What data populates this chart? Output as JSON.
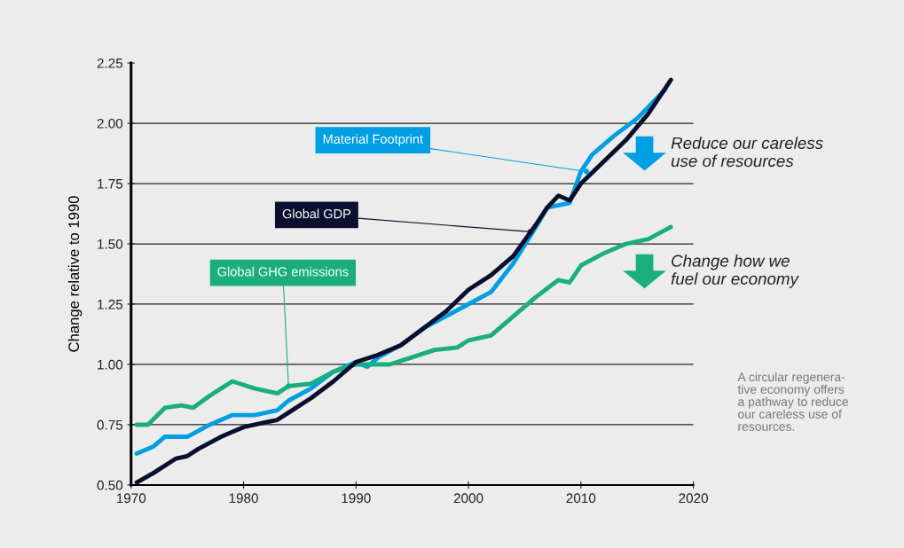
{
  "chart_data": {
    "type": "line",
    "ylabel": "Change relative to 1990",
    "xlim": [
      1970,
      2020
    ],
    "xticks": [
      1970,
      1980,
      1990,
      2000,
      2010,
      2020
    ],
    "ylim": [
      0.5,
      2.25
    ],
    "yticks": [
      {
        "value": 0.5,
        "label": "0.50"
      },
      {
        "value": 0.75,
        "label": "0.75"
      },
      {
        "value": 1.0,
        "label": "1.00"
      },
      {
        "value": 1.25,
        "label": "1.25"
      },
      {
        "value": 1.5,
        "label": "1.50"
      },
      {
        "value": 1.75,
        "label": "1.75"
      },
      {
        "value": 2.0,
        "label": "2.00"
      },
      {
        "value": 2.25,
        "label": "2.25"
      }
    ],
    "grid": "y",
    "marker": "none",
    "line_style": "solid",
    "series": [
      {
        "color": "#009fe3",
        "x": [
          1970.5,
          1972,
          1973,
          1975,
          1977,
          1979,
          1981,
          1983,
          1984,
          1986,
          1988,
          1990,
          1991,
          1992,
          1994,
          1996,
          1998,
          2000,
          2002,
          2004,
          2006,
          2007,
          2009,
          2010,
          2011,
          2013,
          2015,
          2017.5
        ],
        "values": [
          0.63,
          0.66,
          0.7,
          0.7,
          0.75,
          0.79,
          0.79,
          0.81,
          0.85,
          0.9,
          0.97,
          1.01,
          0.99,
          1.03,
          1.08,
          1.15,
          1.2,
          1.25,
          1.3,
          1.42,
          1.57,
          1.65,
          1.67,
          1.8,
          1.87,
          1.95,
          2.02,
          2.14
        ]
      },
      {
        "color": "#0a0f2e",
        "x": [
          1970.5,
          1972,
          1974,
          1975,
          1976,
          1978,
          1980,
          1982,
          1983,
          1984,
          1986,
          1988,
          1990,
          1992,
          1994,
          1996,
          1998,
          2000,
          2002,
          2004,
          2006,
          2007,
          2008,
          2009,
          2010,
          2012,
          2014,
          2016,
          2018
        ],
        "values": [
          0.51,
          0.55,
          0.61,
          0.62,
          0.65,
          0.7,
          0.74,
          0.76,
          0.77,
          0.8,
          0.86,
          0.93,
          1.01,
          1.04,
          1.08,
          1.15,
          1.22,
          1.31,
          1.37,
          1.45,
          1.58,
          1.65,
          1.7,
          1.68,
          1.75,
          1.84,
          1.93,
          2.04,
          2.18
        ]
      },
      {
        "color": "#1aae7f",
        "x": [
          1970.5,
          1971.5,
          1973,
          1974.5,
          1975.5,
          1977,
          1979,
          1981,
          1983,
          1984,
          1986,
          1988,
          1990,
          1993,
          1995,
          1997,
          1999,
          2000,
          2002,
          2004,
          2006,
          2008,
          2009,
          2010,
          2012,
          2014,
          2016,
          2018
        ],
        "values": [
          0.75,
          0.75,
          0.82,
          0.83,
          0.82,
          0.87,
          0.93,
          0.9,
          0.88,
          0.91,
          0.92,
          0.97,
          1.0,
          1.0,
          1.03,
          1.06,
          1.07,
          1.1,
          1.12,
          1.2,
          1.28,
          1.35,
          1.34,
          1.41,
          1.46,
          1.5,
          1.52,
          1.57
        ]
      }
    ],
    "annotations": [
      {
        "text": "Material Footprint",
        "x": 2010.5,
        "y": 1.8
      },
      {
        "text": "Global GDP",
        "x": 2005.5,
        "y": 1.55
      },
      {
        "text": "Global GHG emissions",
        "x": 1984,
        "y": 0.91
      },
      "Reduce our careless\nuse of resources",
      "Change how we\nfuel our economy",
      "A circular regenera-\ntive economy offers\na pathway to reduce\nour careless use of\nresources."
    ]
  }
}
